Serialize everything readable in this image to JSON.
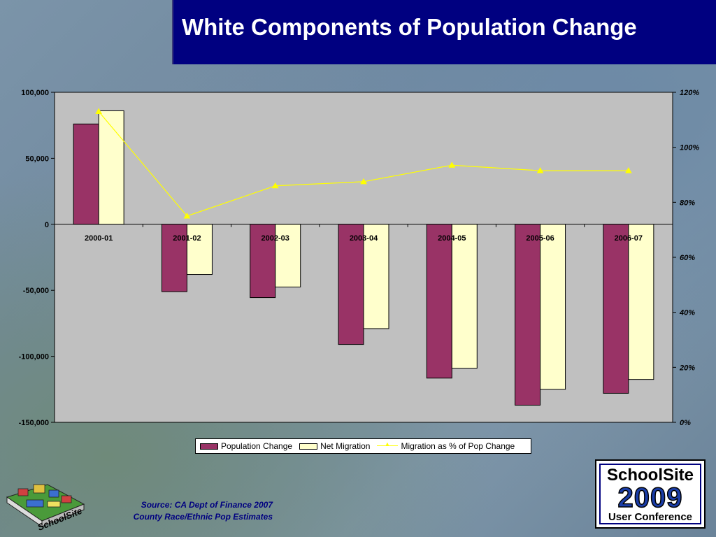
{
  "slide": {
    "title": "White Components of Population Change",
    "source_line1": "Source:  CA Dept of Finance  2007",
    "source_line2": "County Race/Ethnic Pop Estimates"
  },
  "logos": {
    "left_logo_text": "SchoolSite",
    "conference_line1": "SchoolSite",
    "conference_line2": "2009",
    "conference_line3": "User Conference"
  },
  "chart_data": {
    "type": "bar",
    "title": "White Components of Population Change",
    "categories": [
      "2000-01",
      "2001-02",
      "2002-03",
      "2003-04",
      "2004-05",
      "2005-06",
      "2006-07"
    ],
    "series": [
      {
        "name": "Population Change",
        "type": "bar",
        "axis": "left",
        "color": "#993366",
        "values": [
          76000,
          -51000,
          -55500,
          -91000,
          -116500,
          -137000,
          -128000
        ]
      },
      {
        "name": "Net Migration",
        "type": "bar",
        "axis": "left",
        "color": "#ffffcc",
        "values": [
          86000,
          -38000,
          -47500,
          -79000,
          -109000,
          -125000,
          -117500
        ]
      },
      {
        "name": "Migration as % of Pop Change",
        "type": "line",
        "axis": "right",
        "color": "#ffff00",
        "values": [
          113,
          75,
          86,
          87.5,
          93.5,
          91.5,
          91.5
        ]
      }
    ],
    "y_left": {
      "min": -150000,
      "max": 100000,
      "step": 50000,
      "tick_labels": [
        "100,000",
        "50,000",
        "0",
        "-50,000",
        "-100,000",
        "-150,000"
      ]
    },
    "y_right": {
      "min": 0,
      "max": 120,
      "step": 20,
      "tick_labels": [
        "120%",
        "100%",
        "80%",
        "60%",
        "40%",
        "20%",
        "0%"
      ]
    },
    "plot_background": "#c0c0c0",
    "grid": false,
    "legend_position": "bottom"
  }
}
